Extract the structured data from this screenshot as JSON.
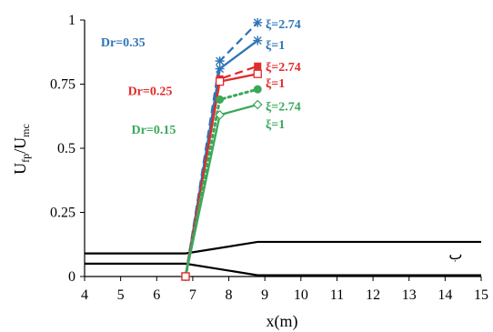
{
  "chart_data": {
    "type": "line",
    "xlabel": "x(m)",
    "ylabel": "U",
    "ylabel_sub": "fp",
    "ylabel_mid": "/U",
    "ylabel_sub2": "mc",
    "xlim": [
      4,
      15
    ],
    "ylim": [
      0,
      1
    ],
    "x_ticks": [
      "4",
      "5",
      "6",
      "7",
      "8",
      "9",
      "10",
      "11",
      "12",
      "13",
      "14",
      "15"
    ],
    "y_ticks": [
      "0",
      "0.25",
      "0.5",
      "0.75",
      "1"
    ],
    "colors": {
      "blue": "#2e75b6",
      "red": "#e32a2a",
      "green": "#3aa859",
      "black": "#000000"
    },
    "series": [
      {
        "color": "blue",
        "dash": "dash",
        "marker": "star",
        "x": [
          6.8,
          7.75,
          8.8
        ],
        "y": [
          0,
          0.84,
          0.99
        ]
      },
      {
        "color": "blue",
        "dash": "solid",
        "marker": "star",
        "x": [
          6.8,
          7.75,
          8.8
        ],
        "y": [
          0,
          0.81,
          0.92
        ]
      },
      {
        "color": "red",
        "dash": "dash",
        "marker": "square",
        "x": [
          6.8,
          7.75,
          8.8
        ],
        "y": [
          0,
          0.77,
          0.82
        ]
      },
      {
        "color": "red",
        "dash": "solid",
        "marker": "square-open",
        "x": [
          6.8,
          7.75,
          8.8
        ],
        "y": [
          0,
          0.76,
          0.79
        ]
      },
      {
        "color": "green",
        "dash": "dot",
        "marker": "circle",
        "x": [
          6.8,
          7.75,
          8.8
        ],
        "y": [
          0,
          0.69,
          0.73
        ]
      },
      {
        "color": "green",
        "dash": "solid",
        "marker": "diamond-open",
        "x": [
          6.8,
          7.75,
          8.8
        ],
        "y": [
          0,
          0.63,
          0.67
        ]
      }
    ],
    "annotations": [
      {
        "text": "Dr=0.35",
        "color": "blue",
        "style": "bold",
        "x": 4.45,
        "y": 0.915
      },
      {
        "text": "Dr=0.25",
        "color": "red",
        "style": "bold",
        "x": 5.2,
        "y": 0.725
      },
      {
        "text": "Dr=0.15",
        "color": "green",
        "style": "bold",
        "x": 5.3,
        "y": 0.575
      },
      {
        "text": "ξ=2.74",
        "color": "blue",
        "style": "xi",
        "x": 9.02,
        "y": 0.985
      },
      {
        "text": "ξ=1",
        "color": "blue",
        "style": "xi",
        "x": 9.02,
        "y": 0.905
      },
      {
        "text": "ξ=2.74",
        "color": "red",
        "style": "xi",
        "x": 9.02,
        "y": 0.82
      },
      {
        "text": "ξ=1",
        "color": "red",
        "style": "xi",
        "x": 9.02,
        "y": 0.755
      },
      {
        "text": "ξ=2.74",
        "color": "green",
        "style": "xi",
        "x": 9.02,
        "y": 0.665
      },
      {
        "text": "ξ=1",
        "color": "green",
        "style": "xi",
        "x": 9.02,
        "y": 0.595
      },
      {
        "text": "ب",
        "color": "black",
        "style": "plain",
        "x": 14.1,
        "y": 0.085
      }
    ],
    "section_lines": [
      {
        "x": [
          4,
          6.8,
          8.8,
          15
        ],
        "y": [
          0.09,
          0.09,
          0.135,
          0.135
        ]
      },
      {
        "x": [
          4,
          6.8,
          8.8,
          15
        ],
        "y": [
          0.05,
          0.05,
          0.005,
          0.005
        ]
      }
    ],
    "grid": false
  }
}
